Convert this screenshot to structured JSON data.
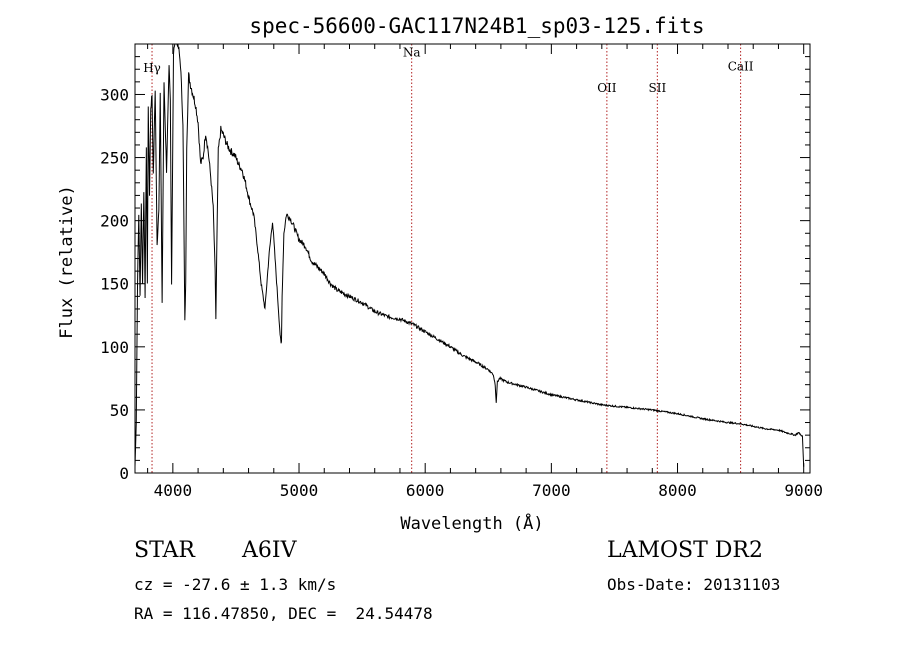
{
  "chart_data": {
    "type": "line",
    "title": "spec-56600-GAC117N24B1_sp03-125.fits",
    "xlabel": "Wavelength (Å)",
    "ylabel": "Flux (relative)",
    "xlim": [
      3700,
      9050
    ],
    "ylim": [
      0,
      340
    ],
    "xticks": [
      4000,
      5000,
      6000,
      7000,
      8000,
      9000
    ],
    "yticks": [
      0,
      50,
      100,
      150,
      200,
      250,
      300
    ],
    "grid": false,
    "line_color": "#000000",
    "marker_color": "#b22222",
    "lines": [
      {
        "label": "Hγ",
        "x": 3835,
        "label_flux": 318
      },
      {
        "label": "Na",
        "x": 5893,
        "label_flux": 330
      },
      {
        "label": "OII",
        "x": 7440,
        "label_flux": 302
      },
      {
        "label": "SII",
        "x": 7840,
        "label_flux": 302
      },
      {
        "label": "CaII",
        "x": 8500,
        "label_flux": 319
      }
    ],
    "series": [
      {
        "x": [
          3700,
          3710,
          3720,
          3730,
          3740,
          3750,
          3760,
          3770,
          3780,
          3790,
          3798,
          3805,
          3815,
          3825,
          3835,
          3845,
          3860,
          3875,
          3889,
          3900,
          3915,
          3930,
          3950,
          3970,
          3980,
          3990,
          4005,
          4020,
          4040,
          4060,
          4080,
          4095,
          4102,
          4110,
          4125,
          4140,
          4160,
          4180,
          4200,
          4220,
          4240,
          4260,
          4280,
          4300,
          4320,
          4335,
          4341,
          4348,
          4360,
          4380,
          4400,
          4430,
          4460,
          4490,
          4520,
          4550,
          4580,
          4610,
          4640,
          4670,
          4700,
          4730,
          4760,
          4790,
          4810,
          4830,
          4850,
          4858,
          4861,
          4866,
          4880,
          4900,
          4930,
          4960,
          5000,
          5050,
          5100,
          5150,
          5200,
          5250,
          5300,
          5400,
          5500,
          5600,
          5700,
          5800,
          5900,
          6000,
          6100,
          6200,
          6300,
          6400,
          6500,
          6540,
          6555,
          6563,
          6572,
          6590,
          6650,
          6800,
          7000,
          7200,
          7400,
          7600,
          7800,
          8000,
          8200,
          8400,
          8500,
          8600,
          8700,
          8800,
          8860,
          8900,
          8930,
          8960,
          8990,
          9000
        ],
        "y": [
          5,
          40,
          150,
          205,
          140,
          215,
          150,
          225,
          140,
          260,
          150,
          292,
          220,
          290,
          300,
          235,
          305,
          180,
          210,
          300,
          135,
          310,
          240,
          320,
          295,
          150,
          330,
          350,
          340,
          325,
          278,
          120,
          150,
          260,
          315,
          308,
          300,
          292,
          278,
          245,
          250,
          270,
          255,
          235,
          210,
          160,
          122,
          175,
          255,
          272,
          268,
          260,
          255,
          252,
          245,
          240,
          228,
          215,
          205,
          180,
          150,
          130,
          170,
          200,
          170,
          140,
          110,
          102,
          104,
          140,
          190,
          205,
          202,
          195,
          185,
          180,
          168,
          163,
          158,
          150,
          145,
          140,
          135,
          128,
          124,
          122,
          118,
          112,
          106,
          100,
          93,
          88,
          82,
          78,
          70,
          56,
          72,
          75,
          72,
          68,
          62,
          58,
          54,
          52,
          50,
          47,
          43,
          40,
          39,
          37,
          35,
          34,
          32,
          31,
          30,
          32,
          29,
          5
        ]
      }
    ]
  },
  "info": {
    "class": "STAR",
    "subclass": "A6IV",
    "survey": "LAMOST DR2",
    "cz": "cz = -27.6 ± 1.3 km/s",
    "obs_date": "Obs-Date: 20131103",
    "radec": "RA = 116.47850, DEC =  24.54478"
  }
}
